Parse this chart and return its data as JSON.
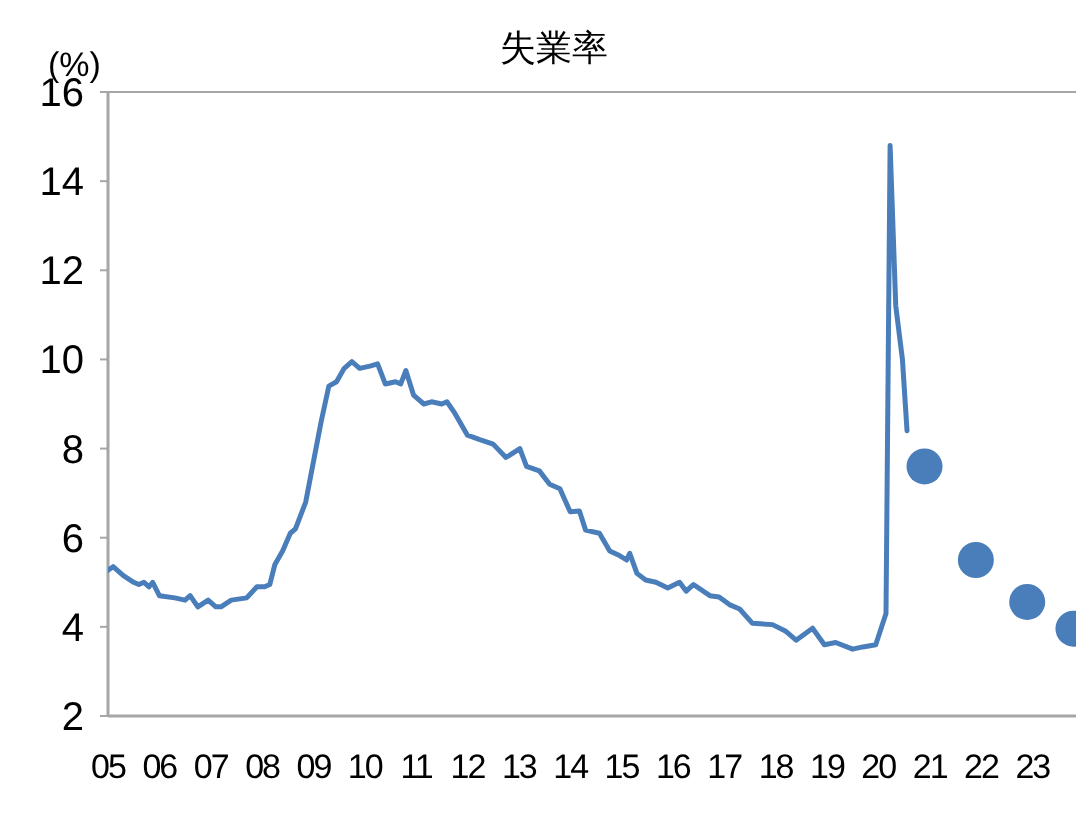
{
  "chart_data": {
    "type": "line",
    "title": "失業率",
    "ylabel": "(%)",
    "xlim": [
      2005,
      2023.85
    ],
    "xticks": [
      {
        "value": 2005,
        "label": "05"
      },
      {
        "value": 2006,
        "label": "06"
      },
      {
        "value": 2007,
        "label": "07"
      },
      {
        "value": 2008,
        "label": "08"
      },
      {
        "value": 2009,
        "label": "09"
      },
      {
        "value": 2010,
        "label": "10"
      },
      {
        "value": 2011,
        "label": "11"
      },
      {
        "value": 2012,
        "label": "12"
      },
      {
        "value": 2013,
        "label": "13"
      },
      {
        "value": 2014,
        "label": "14"
      },
      {
        "value": 2015,
        "label": "15"
      },
      {
        "value": 2016,
        "label": "16"
      },
      {
        "value": 2017,
        "label": "17"
      },
      {
        "value": 2018,
        "label": "18"
      },
      {
        "value": 2019,
        "label": "19"
      },
      {
        "value": 2020,
        "label": "20"
      },
      {
        "value": 2021,
        "label": "21"
      },
      {
        "value": 2022,
        "label": "22"
      },
      {
        "value": 2023,
        "label": "23"
      }
    ],
    "ylim": [
      2,
      16
    ],
    "yticks": [
      2,
      4,
      6,
      8,
      10,
      12,
      14,
      16
    ],
    "series": [
      {
        "type": "line",
        "color": "#4a7ebb",
        "x": [
          2005.0,
          2005.1,
          2005.3,
          2005.5,
          2005.6,
          2005.7,
          2005.8,
          2005.87,
          2006.0,
          2006.3,
          2006.5,
          2006.6,
          2006.75,
          2006.95,
          2007.1,
          2007.2,
          2007.4,
          2007.7,
          2007.9,
          2008.05,
          2008.15,
          2008.25,
          2008.4,
          2008.55,
          2008.65,
          2008.85,
          2009.05,
          2009.15,
          2009.3,
          2009.45,
          2009.6,
          2009.75,
          2009.9,
          2010.1,
          2010.25,
          2010.4,
          2010.6,
          2010.7,
          2010.8,
          2010.95,
          2011.15,
          2011.3,
          2011.5,
          2011.6,
          2011.75,
          2012.0,
          2012.24,
          2012.5,
          2012.75,
          2013.02,
          2013.15,
          2013.4,
          2013.6,
          2013.8,
          2014.0,
          2014.18,
          2014.3,
          2014.57,
          2014.77,
          2014.96,
          2015.1,
          2015.16,
          2015.3,
          2015.47,
          2015.67,
          2015.9,
          2016.13,
          2016.26,
          2016.4,
          2016.72,
          2016.9,
          2017.1,
          2017.3,
          2017.55,
          2017.94,
          2018.2,
          2018.4,
          2018.72,
          2018.95,
          2019.17,
          2019.5,
          2019.7,
          2019.95,
          2020.15,
          2020.23,
          2020.34,
          2020.47,
          2020.56
        ],
        "values": [
          5.27,
          5.35,
          5.15,
          5.0,
          4.95,
          5.0,
          4.9,
          5.0,
          4.7,
          4.65,
          4.6,
          4.7,
          4.45,
          4.6,
          4.45,
          4.45,
          4.6,
          4.65,
          4.9,
          4.9,
          4.95,
          5.4,
          5.7,
          6.1,
          6.2,
          6.8,
          8.0,
          8.6,
          9.4,
          9.5,
          9.8,
          9.95,
          9.8,
          9.85,
          9.9,
          9.45,
          9.5,
          9.45,
          9.75,
          9.2,
          9.0,
          9.05,
          9.0,
          9.05,
          8.8,
          8.3,
          8.2,
          8.1,
          7.8,
          8.0,
          7.6,
          7.5,
          7.2,
          7.1,
          6.58,
          6.6,
          6.17,
          6.1,
          5.7,
          5.6,
          5.5,
          5.65,
          5.2,
          5.05,
          5.0,
          4.87,
          5.0,
          4.8,
          4.95,
          4.7,
          4.67,
          4.5,
          4.4,
          4.08,
          4.05,
          3.9,
          3.7,
          3.97,
          3.6,
          3.65,
          3.5,
          3.55,
          3.6,
          4.3,
          14.8,
          11.2,
          10.0,
          8.4
        ]
      },
      {
        "type": "scatter",
        "marker": "circle",
        "color": "#4a7ebb",
        "x": [
          2020.9,
          2021.9,
          2022.9,
          2023.8
        ],
        "values": [
          7.6,
          5.5,
          4.56,
          3.96
        ]
      }
    ]
  }
}
